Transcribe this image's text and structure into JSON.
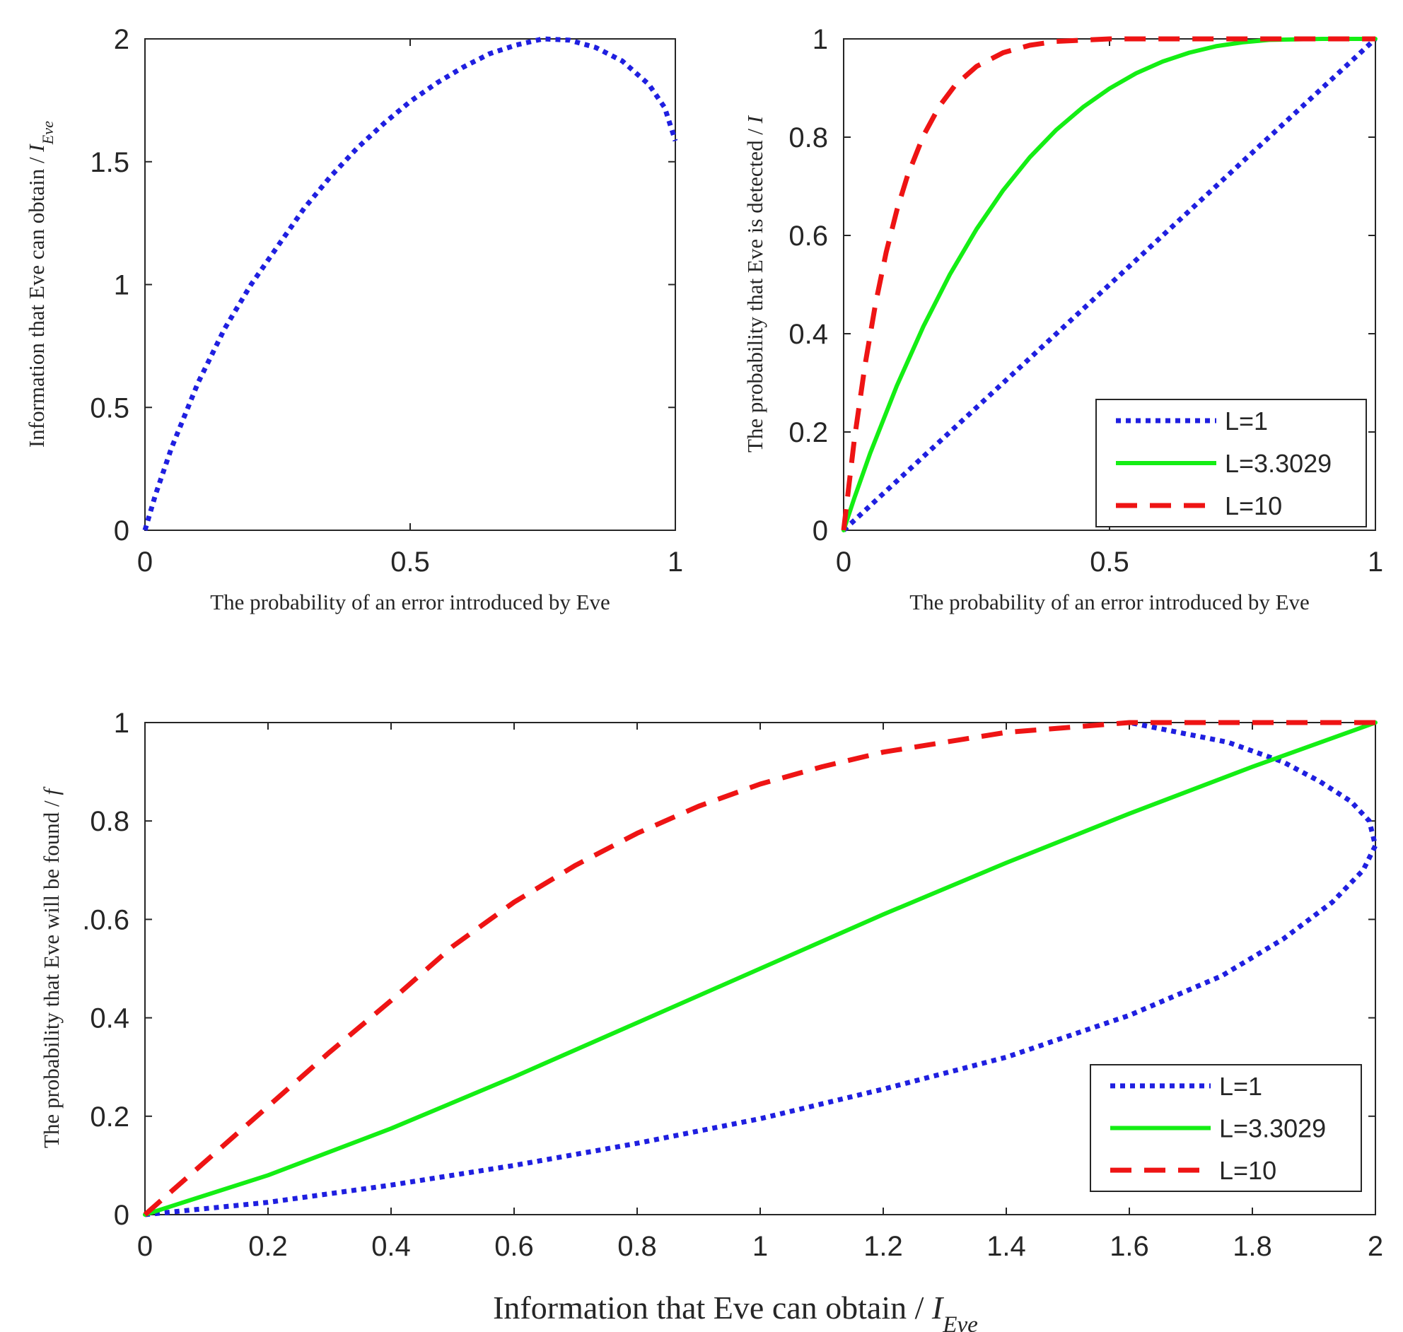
{
  "chart_data": [
    {
      "type": "line",
      "panel": "top-left",
      "xlabel": "The probability of an error introduced by Eve",
      "ylabel": "Information that Eve can obtain / ",
      "ylabel_var": "I",
      "ylabel_sub": "Eve",
      "xlim": [
        0,
        1
      ],
      "ylim": [
        0,
        2
      ],
      "xticks": [
        0,
        0.5,
        1
      ],
      "xtick_labels": [
        "0",
        "0.5",
        "1"
      ],
      "yticks": [
        0,
        0.5,
        1,
        1.5,
        2
      ],
      "ytick_labels": [
        "0",
        "0.5",
        "1",
        "1.5",
        "2"
      ],
      "legend": null,
      "series": [
        {
          "name": "I_Eve",
          "color": "#1f1fe0",
          "style": "dotted",
          "x": [
            0,
            0.02,
            0.05,
            0.1,
            0.15,
            0.2,
            0.25,
            0.3,
            0.35,
            0.4,
            0.45,
            0.5,
            0.55,
            0.6,
            0.65,
            0.7,
            0.75,
            0.8,
            0.85,
            0.9,
            0.95,
            0.98,
            1.0
          ],
          "y": [
            0,
            0.146,
            0.335,
            0.6,
            0.82,
            1.0,
            1.155,
            1.31,
            1.44,
            1.555,
            1.655,
            1.745,
            1.82,
            1.885,
            1.94,
            1.975,
            2.0,
            1.995,
            1.965,
            1.91,
            1.815,
            1.72,
            1.585
          ]
        }
      ]
    },
    {
      "type": "line",
      "panel": "top-right",
      "xlabel": "The probability of an error introduced by Eve",
      "ylabel": "The probability that Eve is detected / ",
      "ylabel_var": "I",
      "xlim": [
        0,
        1
      ],
      "ylim": [
        0,
        1
      ],
      "xticks": [
        0,
        0.5,
        1
      ],
      "xtick_labels": [
        "0",
        "0.5",
        "1"
      ],
      "yticks": [
        0,
        0.2,
        0.4,
        0.6,
        0.8,
        1
      ],
      "ytick_labels": [
        "0",
        "0.2",
        "0.4",
        "0.6",
        "0.8",
        "1"
      ],
      "legend": {
        "placement": "bottom-right",
        "entries": [
          "L=1",
          "L=3.3029",
          "L=10"
        ]
      },
      "series": [
        {
          "name": "L=1",
          "color": "#1f1fe0",
          "style": "dotted",
          "x": [
            0,
            1
          ],
          "y": [
            0,
            1
          ]
        },
        {
          "name": "L=3.3029",
          "color": "#14ee14",
          "style": "solid",
          "x": [
            0,
            0.02,
            0.05,
            0.1,
            0.15,
            0.2,
            0.25,
            0.3,
            0.35,
            0.4,
            0.45,
            0.5,
            0.55,
            0.6,
            0.65,
            0.7,
            0.75,
            0.8,
            0.9,
            1.0
          ],
          "y": [
            0,
            0.065,
            0.157,
            0.294,
            0.415,
            0.521,
            0.613,
            0.692,
            0.759,
            0.815,
            0.861,
            0.899,
            0.93,
            0.954,
            0.972,
            0.985,
            0.993,
            0.998,
            1.0,
            1.0
          ]
        },
        {
          "name": "L=10",
          "color": "#ee1414",
          "style": "dashed",
          "x": [
            0,
            0.02,
            0.04,
            0.06,
            0.08,
            0.1,
            0.12,
            0.15,
            0.18,
            0.21,
            0.25,
            0.3,
            0.35,
            0.4,
            0.5,
            0.6,
            1.0
          ],
          "y": [
            0,
            0.183,
            0.335,
            0.461,
            0.566,
            0.651,
            0.721,
            0.803,
            0.863,
            0.906,
            0.944,
            0.972,
            0.987,
            0.995,
            1.0,
            1.0,
            1.0
          ]
        }
      ]
    },
    {
      "type": "line",
      "panel": "bottom",
      "xlabel": "Information that Eve can obtain / ",
      "xlabel_var": "I",
      "xlabel_sub": "Eve",
      "ylabel": "The probability that Eve will be found / ",
      "ylabel_var": "f",
      "xlim": [
        0,
        2
      ],
      "ylim": [
        0,
        1
      ],
      "xticks": [
        0,
        0.2,
        0.4,
        0.6,
        0.8,
        1,
        1.2,
        1.4,
        1.6,
        1.8,
        2
      ],
      "xtick_labels": [
        "0",
        "0.2",
        "0.4",
        "0.6",
        "0.8",
        "1",
        "1.2",
        "1.4",
        "1.6",
        "1.8",
        "2"
      ],
      "yticks": [
        0,
        0.2,
        0.4,
        0.6,
        0.8,
        1
      ],
      "ytick_labels": [
        "0",
        "0.2",
        "0.4",
        ".0.6",
        "0.8",
        "1"
      ],
      "legend": {
        "placement": "bottom-right",
        "entries": [
          "L=1",
          "L=3.3029",
          "L=10"
        ]
      },
      "series": [
        {
          "name": "L=1",
          "color": "#1f1fe0",
          "style": "dotted",
          "x": [
            0,
            0.2,
            0.4,
            0.6,
            0.8,
            1.0,
            1.2,
            1.4,
            1.6,
            1.75,
            1.85,
            1.93,
            1.98,
            2.0,
            1.99,
            1.96,
            1.91,
            1.85,
            1.76,
            1.6
          ],
          "y": [
            0,
            0.025,
            0.06,
            0.1,
            0.145,
            0.195,
            0.255,
            0.32,
            0.405,
            0.485,
            0.56,
            0.635,
            0.7,
            0.75,
            0.8,
            0.84,
            0.88,
            0.92,
            0.96,
            1.0
          ]
        },
        {
          "name": "L=3.3029",
          "color": "#14ee14",
          "style": "solid",
          "x": [
            0,
            0.2,
            0.4,
            0.6,
            0.8,
            1.0,
            1.2,
            1.4,
            1.6,
            1.8,
            2.0
          ],
          "y": [
            0,
            0.08,
            0.175,
            0.28,
            0.39,
            0.5,
            0.61,
            0.715,
            0.815,
            0.91,
            1.0
          ]
        },
        {
          "name": "L=10",
          "color": "#ee1414",
          "style": "dashed",
          "x": [
            0,
            0.1,
            0.2,
            0.3,
            0.4,
            0.5,
            0.6,
            0.7,
            0.8,
            0.9,
            1.0,
            1.1,
            1.2,
            1.3,
            1.4,
            1.5,
            1.6,
            1.8,
            2.0
          ],
          "y": [
            0,
            0.11,
            0.22,
            0.33,
            0.435,
            0.545,
            0.635,
            0.71,
            0.775,
            0.83,
            0.875,
            0.91,
            0.94,
            0.96,
            0.98,
            0.99,
            1.0,
            1.0,
            1.0
          ]
        }
      ]
    }
  ]
}
